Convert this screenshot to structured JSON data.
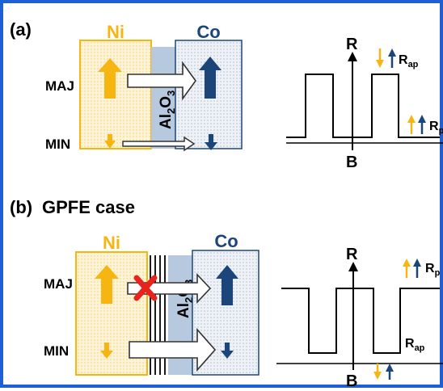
{
  "panel_a": {
    "tag": "(a)",
    "left_metal": "Ni",
    "right_metal": "Co",
    "barrier_main": "Al",
    "barrier_sub2": "2",
    "barrier_o": "O",
    "barrier_sub3": "3",
    "row_top": "MAJ",
    "row_bottom": "MIN",
    "axis_y": "R",
    "axis_x": "B",
    "upper_level": "R",
    "upper_level_sub": "ap",
    "lower_level": "R",
    "lower_level_sub": "p"
  },
  "panel_b": {
    "tag": "(b)",
    "title": "GPFE case",
    "left_metal": "Ni",
    "right_metal": "Co",
    "barrier_main": "Al",
    "barrier_sub2": "2",
    "barrier_o": "O",
    "barrier_sub3": "3",
    "row_top": "MAJ",
    "row_bottom": "MIN",
    "axis_y": "R",
    "axis_x": "B",
    "upper_level": "R",
    "upper_level_sub": "p",
    "lower_level": "R",
    "lower_level_sub": "ap"
  },
  "colors": {
    "ni": "#f7b512",
    "ni_fill": "#fdf3d6",
    "co": "#1c4679",
    "co_fill": "#e9eef5",
    "barrier": "#b7c9df",
    "frame": "#1f5fd6",
    "blocked": "#e8231e"
  }
}
